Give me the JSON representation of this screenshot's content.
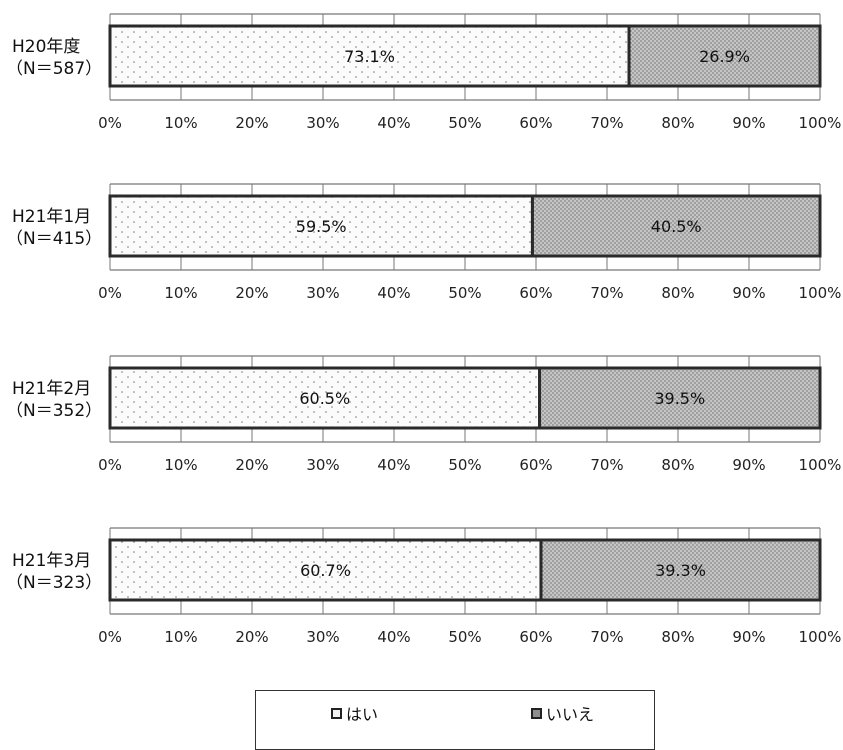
{
  "colors": {
    "yes_fill": "#fbfbfb",
    "no_fill": "#bdbdbd",
    "dot": "#666666",
    "bar_border": "#2a2a2a",
    "grid": "#777777"
  },
  "chart_data": {
    "type": "bar",
    "orientation": "horizontal",
    "stacked": true,
    "percent_scale": true,
    "xlim": [
      0,
      100
    ],
    "x_ticks": [
      "0%",
      "10%",
      "20%",
      "30%",
      "40%",
      "50%",
      "60%",
      "70%",
      "80%",
      "90%",
      "100%"
    ],
    "categories": [
      {
        "line1": "H20年度",
        "line2": "（N＝587）"
      },
      {
        "line1": "H21年1月",
        "line2": "（N＝415）"
      },
      {
        "line1": "H21年2月",
        "line2": "（N＝352）"
      },
      {
        "line1": "H21年3月",
        "line2": "（N＝323）"
      }
    ],
    "series": [
      {
        "name": "はい",
        "values": [
          73.1,
          59.5,
          60.5,
          60.7
        ],
        "labels": [
          "73.1%",
          "59.5%",
          "60.5%",
          "60.7%"
        ]
      },
      {
        "name": "いいえ",
        "values": [
          26.9,
          40.5,
          39.5,
          39.3
        ],
        "labels": [
          "26.9%",
          "40.5%",
          "39.5%",
          "39.3%"
        ]
      }
    ],
    "legend": "bottom-center",
    "grid": true
  }
}
